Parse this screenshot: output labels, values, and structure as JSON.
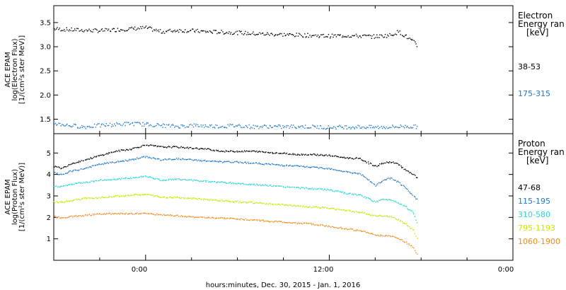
{
  "figure": {
    "x_caption": "hours:minutes, Dec. 30, 2015 - Jan.  1, 2016",
    "x_tick_labels": [
      "0:00",
      "12:00",
      "0:00"
    ]
  },
  "chart_data": [
    {
      "type": "scatter",
      "panel": "electron",
      "ylabel_lines": [
        "ACE EPAM",
        "log(Electron Flux)",
        "[1/(cm²s ster MeV)]"
      ],
      "ylim": [
        1.2,
        3.85
      ],
      "yticks": [
        1.5,
        2.0,
        2.5,
        3.0,
        3.5
      ],
      "ytick_labels": [
        "1.5",
        "2.0",
        "2.5",
        "3.0",
        "3.5"
      ],
      "legend_header": [
        "Electron",
        "Energy ran",
        "[keV]"
      ],
      "x_unit": "hours from Dec. 30, 2015 0:00",
      "xlim": [
        -6,
        24
      ],
      "x_ticks": [
        0,
        12,
        24
      ],
      "series": [
        {
          "name": "38-53",
          "color": "#000000",
          "points": [
            [
              -6,
              3.38
            ],
            [
              -5,
              3.36
            ],
            [
              -4,
              3.35
            ],
            [
              -3,
              3.34
            ],
            [
              -2,
              3.36
            ],
            [
              -1,
              3.38
            ],
            [
              0,
              3.4
            ],
            [
              1,
              3.32
            ],
            [
              2,
              3.35
            ],
            [
              3,
              3.34
            ],
            [
              4,
              3.32
            ],
            [
              5,
              3.31
            ],
            [
              6,
              3.3
            ],
            [
              7,
              3.28
            ],
            [
              8,
              3.27
            ],
            [
              9,
              3.26
            ],
            [
              10,
              3.25
            ],
            [
              11,
              3.24
            ],
            [
              12,
              3.23
            ],
            [
              13,
              3.24
            ],
            [
              14,
              3.23
            ],
            [
              15,
              3.22
            ],
            [
              16,
              3.25
            ],
            [
              16.5,
              3.32
            ],
            [
              17,
              3.22
            ],
            [
              17.5,
              3.1
            ],
            [
              17.8,
              3.0
            ]
          ]
        },
        {
          "name": "175-315",
          "color": "#1f77c8",
          "points": [
            [
              -6,
              1.42
            ],
            [
              -5,
              1.38
            ],
            [
              -4,
              1.35
            ],
            [
              -3,
              1.38
            ],
            [
              -2,
              1.4
            ],
            [
              -1,
              1.42
            ],
            [
              0,
              1.4
            ],
            [
              1,
              1.38
            ],
            [
              2,
              1.36
            ],
            [
              3,
              1.38
            ],
            [
              4,
              1.37
            ],
            [
              5,
              1.36
            ],
            [
              6,
              1.38
            ],
            [
              7,
              1.35
            ],
            [
              8,
              1.36
            ],
            [
              9,
              1.35
            ],
            [
              10,
              1.36
            ],
            [
              11,
              1.35
            ],
            [
              12,
              1.34
            ],
            [
              13,
              1.35
            ],
            [
              14,
              1.35
            ],
            [
              15,
              1.34
            ],
            [
              16,
              1.35
            ],
            [
              17,
              1.36
            ],
            [
              17.8,
              1.35
            ]
          ]
        }
      ]
    },
    {
      "type": "scatter",
      "panel": "proton",
      "ylabel_lines": [
        "ACE EPAM",
        "log(Proton Flux)",
        "[1/(cm²s ster MeV)]"
      ],
      "ylim": [
        0,
        5.9
      ],
      "yticks": [
        1,
        2,
        3,
        4,
        5
      ],
      "ytick_labels": [
        "1",
        "2",
        "3",
        "4",
        "5"
      ],
      "legend_header": [
        "Proton",
        "Energy ran",
        "[keV]"
      ],
      "x_unit": "hours from Dec. 30, 2015 0:00",
      "xlim": [
        -6,
        24
      ],
      "x_ticks": [
        0,
        12,
        24
      ],
      "series": [
        {
          "name": "47-68",
          "color": "#000000",
          "points": [
            [
              -6,
              4.4
            ],
            [
              -5.5,
              4.3
            ],
            [
              -5,
              4.5
            ],
            [
              -4,
              4.7
            ],
            [
              -3,
              4.9
            ],
            [
              -2,
              5.1
            ],
            [
              -1,
              5.2
            ],
            [
              0,
              5.4
            ],
            [
              1,
              5.3
            ],
            [
              2,
              5.3
            ],
            [
              3,
              5.25
            ],
            [
              4,
              5.2
            ],
            [
              5,
              5.1
            ],
            [
              6,
              5.1
            ],
            [
              7,
              5.1
            ],
            [
              8,
              5.05
            ],
            [
              9,
              5.0
            ],
            [
              10,
              4.95
            ],
            [
              11,
              4.95
            ],
            [
              12,
              4.9
            ],
            [
              13,
              4.8
            ],
            [
              14,
              4.75
            ],
            [
              15,
              4.4
            ],
            [
              15.5,
              4.55
            ],
            [
              16,
              4.6
            ],
            [
              16.5,
              4.5
            ],
            [
              17,
              4.2
            ],
            [
              17.5,
              4.0
            ],
            [
              17.8,
              3.8
            ]
          ]
        },
        {
          "name": "115-195",
          "color": "#1f77c8",
          "points": [
            [
              -6,
              4.1
            ],
            [
              -5.5,
              4.0
            ],
            [
              -5,
              4.15
            ],
            [
              -4,
              4.3
            ],
            [
              -3,
              4.5
            ],
            [
              -2,
              4.6
            ],
            [
              -1,
              4.7
            ],
            [
              0,
              4.85
            ],
            [
              1,
              4.7
            ],
            [
              2,
              4.75
            ],
            [
              3,
              4.7
            ],
            [
              4,
              4.65
            ],
            [
              5,
              4.6
            ],
            [
              6,
              4.6
            ],
            [
              7,
              4.55
            ],
            [
              8,
              4.5
            ],
            [
              9,
              4.45
            ],
            [
              10,
              4.4
            ],
            [
              11,
              4.35
            ],
            [
              12,
              4.3
            ],
            [
              13,
              4.15
            ],
            [
              14,
              4.05
            ],
            [
              15,
              3.5
            ],
            [
              15.5,
              3.75
            ],
            [
              16,
              3.85
            ],
            [
              16.5,
              3.65
            ],
            [
              17,
              3.35
            ],
            [
              17.5,
              3.0
            ],
            [
              17.8,
              2.8
            ]
          ]
        },
        {
          "name": "310-580",
          "color": "#2ad4d4",
          "points": [
            [
              -6,
              3.5
            ],
            [
              -5.5,
              3.45
            ],
            [
              -5,
              3.55
            ],
            [
              -4,
              3.65
            ],
            [
              -3,
              3.75
            ],
            [
              -2,
              3.8
            ],
            [
              -1,
              3.85
            ],
            [
              0,
              3.95
            ],
            [
              1,
              3.75
            ],
            [
              2,
              3.8
            ],
            [
              3,
              3.75
            ],
            [
              4,
              3.7
            ],
            [
              5,
              3.65
            ],
            [
              6,
              3.6
            ],
            [
              7,
              3.55
            ],
            [
              8,
              3.5
            ],
            [
              9,
              3.45
            ],
            [
              10,
              3.4
            ],
            [
              11,
              3.35
            ],
            [
              12,
              3.3
            ],
            [
              13,
              3.15
            ],
            [
              14,
              3.05
            ],
            [
              15,
              2.75
            ],
            [
              15.5,
              2.85
            ],
            [
              16,
              2.85
            ],
            [
              16.5,
              2.7
            ],
            [
              17,
              2.5
            ],
            [
              17.5,
              2.2
            ],
            [
              17.8,
              1.6
            ]
          ]
        },
        {
          "name": "795-1193",
          "color": "#c8e600",
          "points": [
            [
              -6,
              2.75
            ],
            [
              -5.5,
              2.72
            ],
            [
              -5,
              2.8
            ],
            [
              -4,
              2.9
            ],
            [
              -3,
              2.95
            ],
            [
              -2,
              3.0
            ],
            [
              -1,
              3.05
            ],
            [
              0,
              3.1
            ],
            [
              1,
              2.95
            ],
            [
              2,
              2.95
            ],
            [
              3,
              2.9
            ],
            [
              4,
              2.85
            ],
            [
              5,
              2.8
            ],
            [
              6,
              2.75
            ],
            [
              7,
              2.7
            ],
            [
              8,
              2.65
            ],
            [
              9,
              2.6
            ],
            [
              10,
              2.55
            ],
            [
              11,
              2.5
            ],
            [
              12,
              2.45
            ],
            [
              13,
              2.35
            ],
            [
              14,
              2.25
            ],
            [
              15,
              2.1
            ],
            [
              15.5,
              2.1
            ],
            [
              16,
              2.05
            ],
            [
              16.5,
              1.9
            ],
            [
              17,
              1.7
            ],
            [
              17.5,
              1.4
            ],
            [
              17.8,
              0.9
            ]
          ]
        },
        {
          "name": "1060-1900",
          "color": "#f08c1e",
          "points": [
            [
              -6,
              2.05
            ],
            [
              -5.5,
              2.0
            ],
            [
              -5,
              2.05
            ],
            [
              -4,
              2.12
            ],
            [
              -3,
              2.18
            ],
            [
              -2,
              2.2
            ],
            [
              -1,
              2.2
            ],
            [
              0,
              2.2
            ],
            [
              1,
              2.15
            ],
            [
              2,
              2.1
            ],
            [
              3,
              2.05
            ],
            [
              4,
              2.0
            ],
            [
              5,
              1.98
            ],
            [
              6,
              1.95
            ],
            [
              7,
              1.9
            ],
            [
              8,
              1.85
            ],
            [
              9,
              1.8
            ],
            [
              10,
              1.75
            ],
            [
              11,
              1.7
            ],
            [
              12,
              1.6
            ],
            [
              13,
              1.5
            ],
            [
              14,
              1.4
            ],
            [
              15,
              1.2
            ],
            [
              15.5,
              1.18
            ],
            [
              16,
              1.15
            ],
            [
              16.5,
              1.05
            ],
            [
              17,
              0.85
            ],
            [
              17.5,
              0.6
            ],
            [
              17.8,
              0.2
            ]
          ]
        }
      ]
    }
  ]
}
